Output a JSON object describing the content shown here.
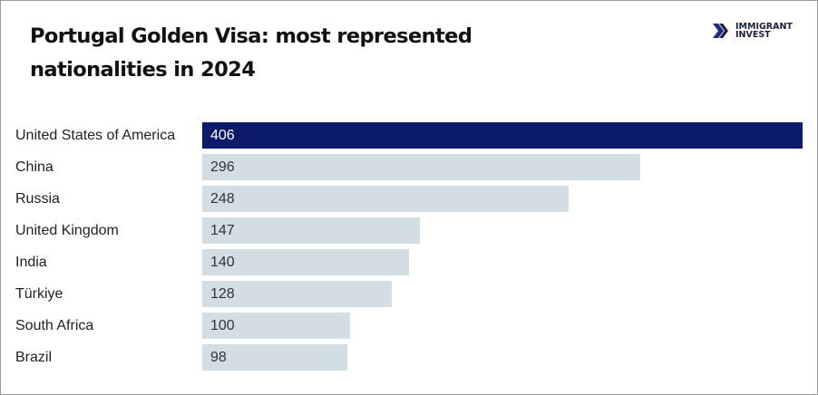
{
  "title": "Portugal Golden Visa: most represented nationalities in 2024",
  "logo": {
    "line1": "IMMIGRANT",
    "line2": "INVEST"
  },
  "colors": {
    "highlight": "#0c1a6b",
    "bar": "#d3dde4",
    "highlight_text": "#ffffff",
    "text": "#333333"
  },
  "chart_data": {
    "type": "bar",
    "orientation": "horizontal",
    "title": "Portugal Golden Visa: most represented nationalities in 2024",
    "categories": [
      "United States of America",
      "China",
      "Russia",
      "United Kingdom",
      "India",
      "Türkiye",
      "South Africa",
      "Brazil"
    ],
    "values": [
      406,
      296,
      248,
      147,
      140,
      128,
      100,
      98
    ],
    "highlighted": "United States of America",
    "xlim": [
      0,
      406
    ],
    "grid": false
  }
}
